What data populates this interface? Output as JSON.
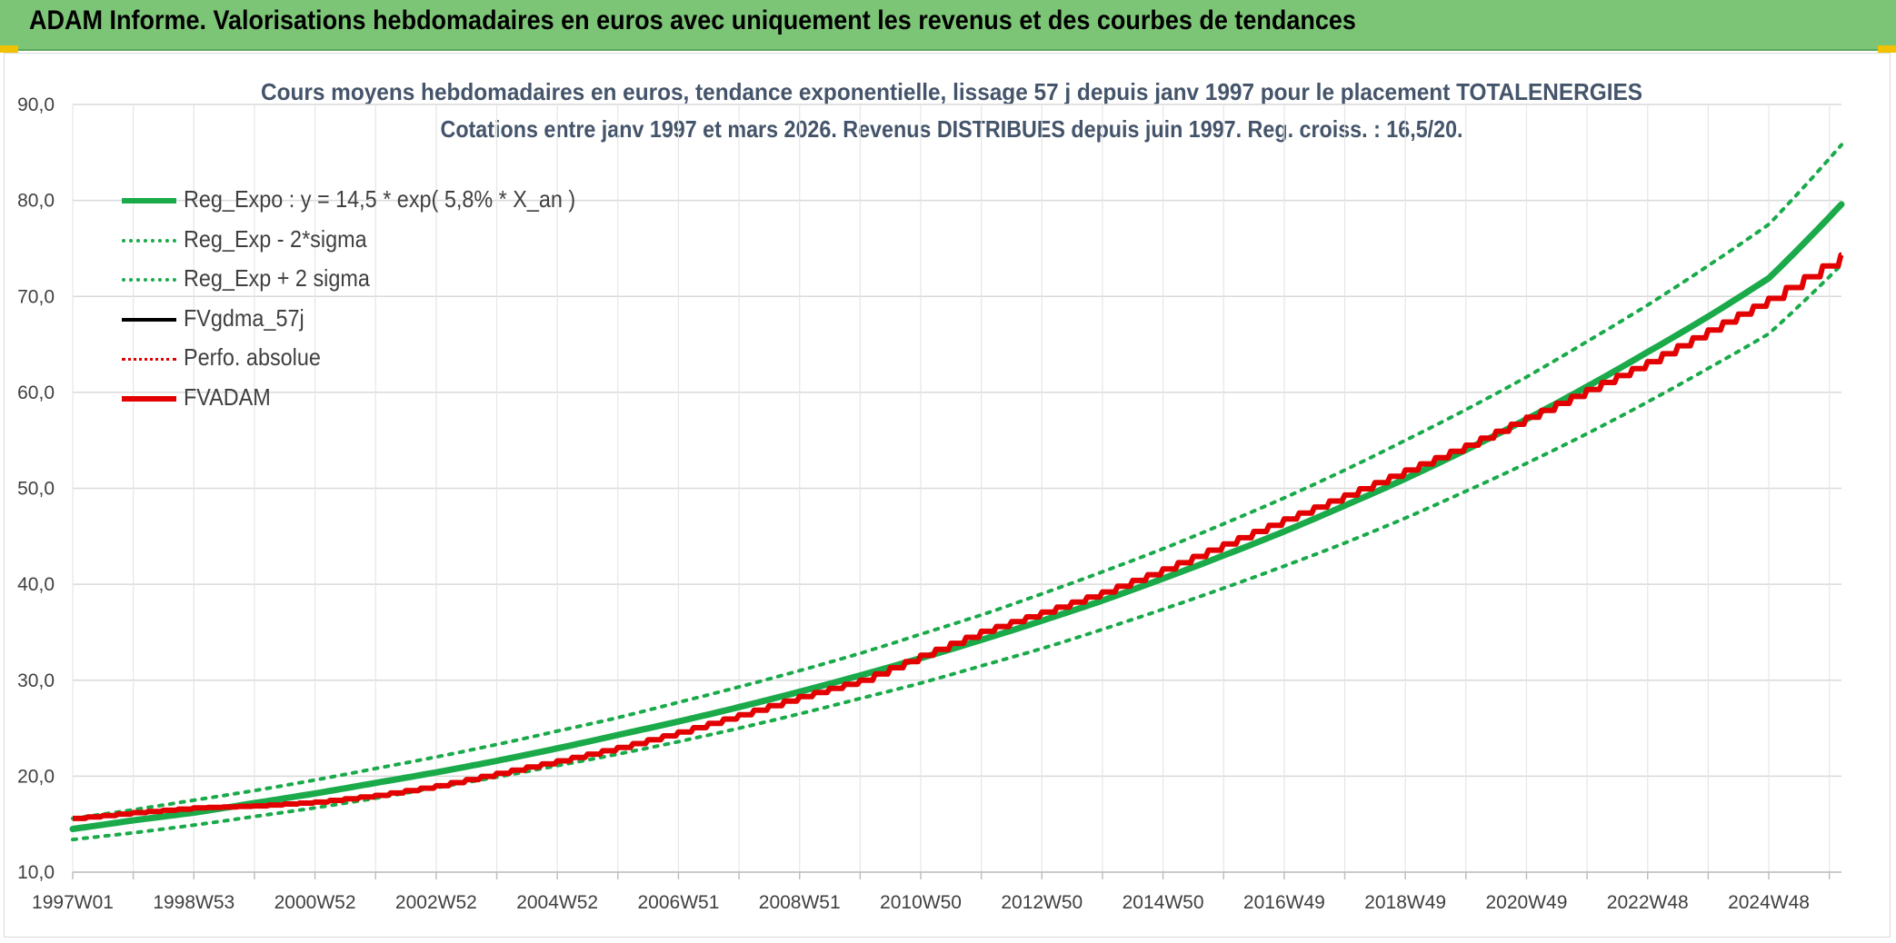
{
  "banner": {
    "title": "ADAM Informe. Valorisations hebdomadaires en euros avec uniquement les revenus et des courbes de tendances"
  },
  "colors": {
    "green": "#1aaa4a",
    "red": "#e30000",
    "black": "#000000",
    "banner": "#7cc576"
  },
  "chart_data": {
    "type": "line",
    "title": "Cours moyens hebdomadaires en euros, tendance exponentielle, lissage 57 j depuis janv 1997 pour le placement TOTALENERGIES",
    "subtitle": "Cotations entre janv 1997 et mars 2026. Revenus DISTRIBUES depuis juin 1997. Reg. croiss. : 16,5/20.",
    "xlabel": "",
    "ylabel": "",
    "ylim": [
      10,
      90
    ],
    "yticks": [
      "10,0",
      "20,0",
      "30,0",
      "40,0",
      "50,0",
      "60,0",
      "70,0",
      "80,0",
      "90,0"
    ],
    "x_range": [
      "1997W01",
      "2026W12"
    ],
    "xticks": [
      "1997W01",
      "1998W53",
      "2000W52",
      "2002W52",
      "2004W52",
      "2006W51",
      "2008W51",
      "2010W50",
      "2012W50",
      "2014W50",
      "2016W49",
      "2018W49",
      "2020W49",
      "2022W48",
      "2024W48"
    ],
    "grid": true,
    "legend_position": "top-left",
    "x_years": [
      1997,
      1998,
      1999,
      2000,
      2001,
      2002,
      2003,
      2004,
      2005,
      2006,
      2007,
      2008,
      2009,
      2010,
      2011,
      2012,
      2013,
      2014,
      2015,
      2016,
      2017,
      2018,
      2019,
      2020,
      2021,
      2022,
      2023,
      2024,
      2025,
      2026.2
    ],
    "series": [
      {
        "name": "Reg_Expo : y = 14,5 * exp( 5,8% *  X_an )",
        "style": "solid-thick",
        "color": "#1aaa4a",
        "values": [
          14.5,
          15.4,
          16.2,
          17.2,
          18.2,
          19.3,
          20.4,
          21.6,
          22.9,
          24.3,
          25.7,
          27.2,
          28.8,
          30.5,
          32.3,
          34.2,
          36.2,
          38.3,
          40.6,
          43.0,
          45.5,
          48.2,
          51.0,
          54.0,
          57.2,
          60.6,
          64.2,
          67.9,
          71.9,
          79.6
        ]
      },
      {
        "name": "Reg_Exp - 2*sigma",
        "style": "dotted",
        "color": "#1aaa4a",
        "values": [
          13.4,
          14.1,
          14.9,
          15.8,
          16.7,
          17.7,
          18.8,
          19.9,
          21.1,
          22.3,
          23.6,
          25.0,
          26.5,
          28.1,
          29.7,
          31.5,
          33.3,
          35.3,
          37.4,
          39.6,
          41.9,
          44.3,
          46.9,
          49.7,
          52.6,
          55.7,
          59.0,
          62.5,
          66.1,
          73.3
        ]
      },
      {
        "name": "Reg_Exp + 2 sigma",
        "style": "dotted",
        "color": "#1aaa4a",
        "values": [
          15.6,
          16.5,
          17.5,
          18.5,
          19.6,
          20.8,
          22.0,
          23.3,
          24.7,
          26.1,
          27.7,
          29.3,
          31.0,
          32.8,
          34.8,
          36.8,
          39.0,
          41.3,
          43.7,
          46.3,
          49.0,
          51.9,
          55.0,
          58.2,
          61.6,
          65.3,
          69.1,
          73.2,
          77.5,
          85.8
        ]
      },
      {
        "name": "FVgdma_57j",
        "style": "solid",
        "color": "#000000",
        "values": []
      },
      {
        "name": "Perfo. absolue",
        "style": "dotted",
        "color": "#e30000",
        "values": []
      },
      {
        "name": "FVADAM",
        "style": "step-thick",
        "color": "#e30000",
        "values": [
          15.6,
          16.2,
          16.7,
          16.9,
          17.3,
          18.0,
          19.0,
          20.3,
          21.6,
          23.0,
          24.6,
          26.4,
          28.3,
          30.0,
          32.6,
          35.1,
          37.1,
          39.2,
          41.6,
          44.2,
          46.8,
          49.3,
          51.9,
          54.5,
          57.4,
          60.3,
          63.2,
          66.5,
          69.8,
          74.3
        ]
      }
    ]
  }
}
